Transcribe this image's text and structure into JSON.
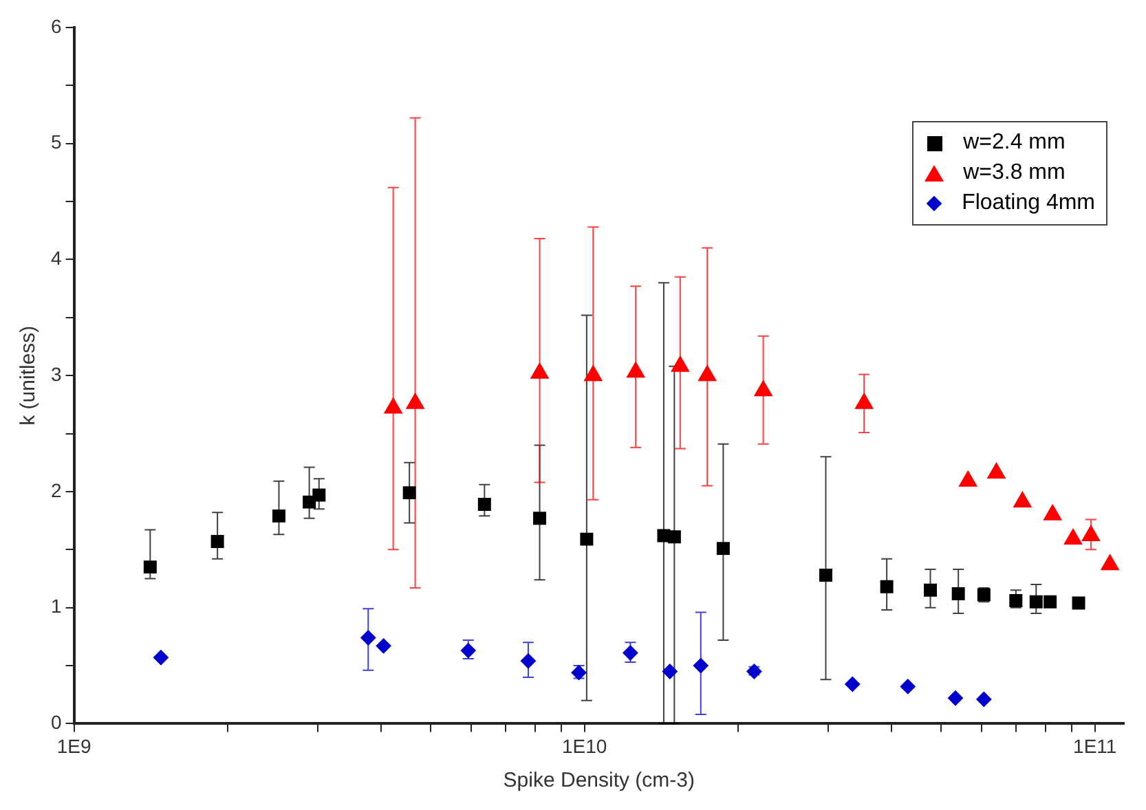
{
  "chart_data": {
    "type": "scatter",
    "xlabel": "Spike Density (cm-3)",
    "ylabel": "k (unitless)",
    "log": "x",
    "grid": false,
    "legend": "top right",
    "xlim": [
      1000000000.0,
      114000000000.0
    ],
    "xticks": [
      {
        "value": 1000000000.0,
        "label": "1E9"
      },
      {
        "value": 2000000000.0,
        "label": null
      },
      {
        "value": 3000000000.0,
        "label": null
      },
      {
        "value": 4000000000.0,
        "label": null
      },
      {
        "value": 5000000000.0,
        "label": null
      },
      {
        "value": 6000000000.0,
        "label": null
      },
      {
        "value": 7000000000.0,
        "label": null
      },
      {
        "value": 8000000000.0,
        "label": null
      },
      {
        "value": 9000000000.0,
        "label": null
      },
      {
        "value": 10000000000.0,
        "label": "1E10"
      },
      {
        "value": 20000000000.0,
        "label": null
      },
      {
        "value": 30000000000.0,
        "label": null
      },
      {
        "value": 40000000000.0,
        "label": null
      },
      {
        "value": 50000000000.0,
        "label": null
      },
      {
        "value": 60000000000.0,
        "label": null
      },
      {
        "value": 70000000000.0,
        "label": null
      },
      {
        "value": 80000000000.0,
        "label": null
      },
      {
        "value": 90000000000.0,
        "label": null
      },
      {
        "value": 100000000000.0,
        "label": "1E11"
      }
    ],
    "ylim": [
      0,
      6
    ],
    "yticks": [
      0,
      {
        "value": 0.5,
        "label": null
      },
      1,
      {
        "value": 1.5,
        "label": null
      },
      2,
      {
        "value": 2.5,
        "label": null
      },
      3,
      {
        "value": 3.5,
        "label": null
      },
      4,
      {
        "value": 4.5,
        "label": null
      },
      5,
      {
        "value": 5.5,
        "label": null
      },
      6
    ],
    "series": [
      {
        "name": "w=2.4 mm",
        "color": "#000000",
        "marker": "square",
        "x": [
          1410000000.0,
          1910000000.0,
          2520000000.0,
          2890000000.0,
          3020000000.0,
          4540000000.0,
          6370000000.0,
          8170000000.0,
          10100000000.0,
          14300000000.0,
          15000000000.0,
          18700000000.0,
          29700000000.0,
          39100000000.0,
          47600000000.0,
          54000000000.0,
          60600000000.0,
          70000000000.0,
          76700000000.0,
          81700000000.0,
          92900000000.0
        ],
        "values": [
          1.35,
          1.57,
          1.79,
          1.91,
          1.97,
          1.99,
          1.89,
          1.77,
          1.59,
          1.62,
          1.61,
          1.51,
          1.28,
          1.18,
          1.15,
          1.12,
          1.11,
          1.06,
          1.05,
          1.05,
          1.04
        ],
        "errors": [
          [
            1.25,
            1.67
          ],
          [
            1.42,
            1.82
          ],
          [
            1.63,
            2.09
          ],
          [
            1.77,
            2.21
          ],
          [
            1.85,
            2.11
          ],
          [
            1.73,
            2.25
          ],
          [
            1.79,
            2.06
          ],
          [
            1.24,
            2.4
          ],
          [
            0.2,
            3.52
          ],
          [
            0,
            3.8
          ],
          [
            0,
            3.08
          ],
          [
            0.72,
            2.41
          ],
          [
            0.38,
            2.3
          ],
          [
            0.98,
            1.42
          ],
          [
            1.0,
            1.33
          ],
          [
            0.95,
            1.33
          ],
          [
            1.05,
            1.17
          ],
          [
            1.0,
            1.15
          ],
          [
            0.95,
            1.2
          ],
          null,
          null
        ]
      },
      {
        "name": "w=3.8 mm",
        "color": "#ff0000",
        "marker": "triangle",
        "x": [
          4220000000.0,
          4660000000.0,
          8170000000.0,
          10400000000.0,
          12600000000.0,
          15400000000.0,
          17400000000.0,
          22400000000.0,
          35300000000.0,
          56400000000.0,
          64100000000.0,
          72100000000.0,
          82600000000.0,
          90600000000.0,
          98200000000.0,
          107000000000.0
        ],
        "values": [
          2.72,
          2.76,
          3.02,
          3.0,
          3.03,
          3.08,
          3.0,
          2.87,
          2.76,
          2.09,
          2.16,
          1.91,
          1.8,
          1.59,
          1.62,
          1.37
        ],
        "errors": [
          [
            1.5,
            4.62
          ],
          [
            1.17,
            5.22
          ],
          [
            2.08,
            4.18
          ],
          [
            1.93,
            4.28
          ],
          [
            2.38,
            3.77
          ],
          [
            2.37,
            3.85
          ],
          [
            2.05,
            4.1
          ],
          [
            2.41,
            3.34
          ],
          [
            2.51,
            3.01
          ],
          null,
          null,
          null,
          null,
          null,
          [
            1.5,
            1.76
          ],
          null
        ]
      },
      {
        "name": "Floating 4mm",
        "color": "#0000cc",
        "marker": "diamond",
        "x": [
          1480000000.0,
          3770000000.0,
          4040000000.0,
          5920000000.0,
          7760000000.0,
          9750000000.0,
          12300000000.0,
          14700000000.0,
          16900000000.0,
          21500000000.0,
          33500000000.0,
          43000000000.0,
          53300000000.0,
          60600000000.0
        ],
        "values": [
          0.57,
          0.74,
          0.67,
          0.63,
          0.54,
          0.44,
          0.61,
          0.45,
          0.5,
          0.45,
          0.34,
          0.32,
          0.22,
          0.21
        ],
        "errors": [
          null,
          [
            0.46,
            0.99
          ],
          null,
          [
            0.56,
            0.72
          ],
          [
            0.4,
            0.7
          ],
          [
            0.39,
            0.5
          ],
          [
            0.53,
            0.7
          ],
          null,
          [
            0.08,
            0.96
          ],
          [
            0.42,
            0.49
          ],
          null,
          null,
          null,
          null
        ]
      }
    ]
  }
}
